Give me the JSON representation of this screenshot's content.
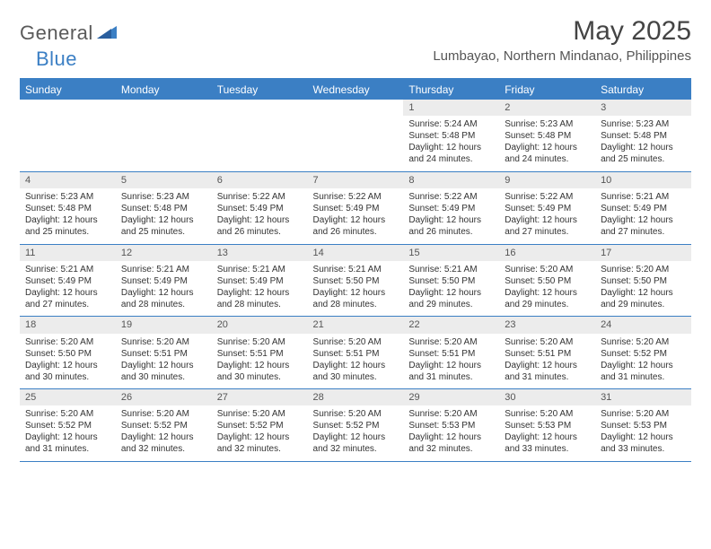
{
  "logo": {
    "text1": "General",
    "text2": "Blue"
  },
  "title": "May 2025",
  "location": "Lumbayao, Northern Mindanao, Philippines",
  "colors": {
    "header_bg": "#3b7fc4",
    "header_text": "#ffffff",
    "daynum_bg": "#ececec",
    "border": "#3b7fc4",
    "body_text": "#333333"
  },
  "day_headers": [
    "Sunday",
    "Monday",
    "Tuesday",
    "Wednesday",
    "Thursday",
    "Friday",
    "Saturday"
  ],
  "weeks": [
    [
      null,
      null,
      null,
      null,
      {
        "n": "1",
        "sr": "Sunrise: 5:24 AM",
        "ss": "Sunset: 5:48 PM",
        "dl": "Daylight: 12 hours and 24 minutes."
      },
      {
        "n": "2",
        "sr": "Sunrise: 5:23 AM",
        "ss": "Sunset: 5:48 PM",
        "dl": "Daylight: 12 hours and 24 minutes."
      },
      {
        "n": "3",
        "sr": "Sunrise: 5:23 AM",
        "ss": "Sunset: 5:48 PM",
        "dl": "Daylight: 12 hours and 25 minutes."
      }
    ],
    [
      {
        "n": "4",
        "sr": "Sunrise: 5:23 AM",
        "ss": "Sunset: 5:48 PM",
        "dl": "Daylight: 12 hours and 25 minutes."
      },
      {
        "n": "5",
        "sr": "Sunrise: 5:23 AM",
        "ss": "Sunset: 5:48 PM",
        "dl": "Daylight: 12 hours and 25 minutes."
      },
      {
        "n": "6",
        "sr": "Sunrise: 5:22 AM",
        "ss": "Sunset: 5:49 PM",
        "dl": "Daylight: 12 hours and 26 minutes."
      },
      {
        "n": "7",
        "sr": "Sunrise: 5:22 AM",
        "ss": "Sunset: 5:49 PM",
        "dl": "Daylight: 12 hours and 26 minutes."
      },
      {
        "n": "8",
        "sr": "Sunrise: 5:22 AM",
        "ss": "Sunset: 5:49 PM",
        "dl": "Daylight: 12 hours and 26 minutes."
      },
      {
        "n": "9",
        "sr": "Sunrise: 5:22 AM",
        "ss": "Sunset: 5:49 PM",
        "dl": "Daylight: 12 hours and 27 minutes."
      },
      {
        "n": "10",
        "sr": "Sunrise: 5:21 AM",
        "ss": "Sunset: 5:49 PM",
        "dl": "Daylight: 12 hours and 27 minutes."
      }
    ],
    [
      {
        "n": "11",
        "sr": "Sunrise: 5:21 AM",
        "ss": "Sunset: 5:49 PM",
        "dl": "Daylight: 12 hours and 27 minutes."
      },
      {
        "n": "12",
        "sr": "Sunrise: 5:21 AM",
        "ss": "Sunset: 5:49 PM",
        "dl": "Daylight: 12 hours and 28 minutes."
      },
      {
        "n": "13",
        "sr": "Sunrise: 5:21 AM",
        "ss": "Sunset: 5:49 PM",
        "dl": "Daylight: 12 hours and 28 minutes."
      },
      {
        "n": "14",
        "sr": "Sunrise: 5:21 AM",
        "ss": "Sunset: 5:50 PM",
        "dl": "Daylight: 12 hours and 28 minutes."
      },
      {
        "n": "15",
        "sr": "Sunrise: 5:21 AM",
        "ss": "Sunset: 5:50 PM",
        "dl": "Daylight: 12 hours and 29 minutes."
      },
      {
        "n": "16",
        "sr": "Sunrise: 5:20 AM",
        "ss": "Sunset: 5:50 PM",
        "dl": "Daylight: 12 hours and 29 minutes."
      },
      {
        "n": "17",
        "sr": "Sunrise: 5:20 AM",
        "ss": "Sunset: 5:50 PM",
        "dl": "Daylight: 12 hours and 29 minutes."
      }
    ],
    [
      {
        "n": "18",
        "sr": "Sunrise: 5:20 AM",
        "ss": "Sunset: 5:50 PM",
        "dl": "Daylight: 12 hours and 30 minutes."
      },
      {
        "n": "19",
        "sr": "Sunrise: 5:20 AM",
        "ss": "Sunset: 5:51 PM",
        "dl": "Daylight: 12 hours and 30 minutes."
      },
      {
        "n": "20",
        "sr": "Sunrise: 5:20 AM",
        "ss": "Sunset: 5:51 PM",
        "dl": "Daylight: 12 hours and 30 minutes."
      },
      {
        "n": "21",
        "sr": "Sunrise: 5:20 AM",
        "ss": "Sunset: 5:51 PM",
        "dl": "Daylight: 12 hours and 30 minutes."
      },
      {
        "n": "22",
        "sr": "Sunrise: 5:20 AM",
        "ss": "Sunset: 5:51 PM",
        "dl": "Daylight: 12 hours and 31 minutes."
      },
      {
        "n": "23",
        "sr": "Sunrise: 5:20 AM",
        "ss": "Sunset: 5:51 PM",
        "dl": "Daylight: 12 hours and 31 minutes."
      },
      {
        "n": "24",
        "sr": "Sunrise: 5:20 AM",
        "ss": "Sunset: 5:52 PM",
        "dl": "Daylight: 12 hours and 31 minutes."
      }
    ],
    [
      {
        "n": "25",
        "sr": "Sunrise: 5:20 AM",
        "ss": "Sunset: 5:52 PM",
        "dl": "Daylight: 12 hours and 31 minutes."
      },
      {
        "n": "26",
        "sr": "Sunrise: 5:20 AM",
        "ss": "Sunset: 5:52 PM",
        "dl": "Daylight: 12 hours and 32 minutes."
      },
      {
        "n": "27",
        "sr": "Sunrise: 5:20 AM",
        "ss": "Sunset: 5:52 PM",
        "dl": "Daylight: 12 hours and 32 minutes."
      },
      {
        "n": "28",
        "sr": "Sunrise: 5:20 AM",
        "ss": "Sunset: 5:52 PM",
        "dl": "Daylight: 12 hours and 32 minutes."
      },
      {
        "n": "29",
        "sr": "Sunrise: 5:20 AM",
        "ss": "Sunset: 5:53 PM",
        "dl": "Daylight: 12 hours and 32 minutes."
      },
      {
        "n": "30",
        "sr": "Sunrise: 5:20 AM",
        "ss": "Sunset: 5:53 PM",
        "dl": "Daylight: 12 hours and 33 minutes."
      },
      {
        "n": "31",
        "sr": "Sunrise: 5:20 AM",
        "ss": "Sunset: 5:53 PM",
        "dl": "Daylight: 12 hours and 33 minutes."
      }
    ]
  ]
}
